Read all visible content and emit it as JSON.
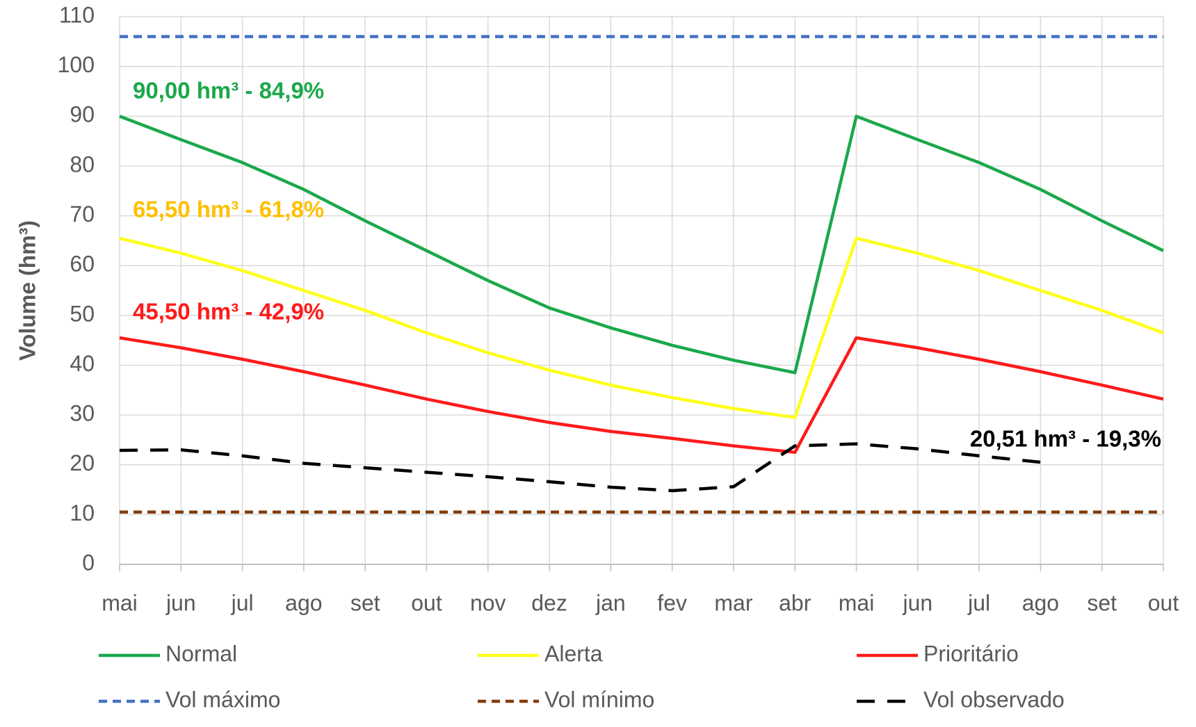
{
  "chart_data": {
    "type": "line",
    "y_label": "Volume (hm³)",
    "categories": [
      "mai",
      "jun",
      "jul",
      "ago",
      "set",
      "out",
      "nov",
      "dez",
      "jan",
      "fev",
      "mar",
      "abr",
      "mai",
      "jun",
      "jul",
      "ago",
      "set",
      "out"
    ],
    "ylim": [
      0,
      110
    ],
    "yticks": [
      0,
      10,
      20,
      30,
      40,
      50,
      60,
      70,
      80,
      90,
      100,
      110
    ],
    "grid": true,
    "series": [
      {
        "name": "Normal",
        "color": "#1ba84a",
        "dash": "solid",
        "values": [
          90,
          85.3,
          80.7,
          75.3,
          69,
          63,
          57,
          51.5,
          47.5,
          44,
          41,
          38.5,
          90,
          85.3,
          80.7,
          75.3,
          69,
          63
        ]
      },
      {
        "name": "Alerta",
        "color": "#ffff1a",
        "dash": "solid",
        "values": [
          65.5,
          62.5,
          59,
          55,
          51,
          46.5,
          42.5,
          39,
          36,
          33.5,
          31.3,
          29.5,
          65.5,
          62.5,
          59,
          55,
          51,
          46.5
        ]
      },
      {
        "name": "Prioritário",
        "color": "#ff1a1a",
        "dash": "solid",
        "values": [
          45.5,
          43.5,
          41.2,
          38.7,
          36,
          33.2,
          30.7,
          28.5,
          26.7,
          25.3,
          23.8,
          22.5,
          45.5,
          43.5,
          41.2,
          38.7,
          36,
          33.2
        ]
      },
      {
        "name": "Vol máximo",
        "color": "#4472c4",
        "dash": "dashed",
        "values": [
          106,
          106,
          106,
          106,
          106,
          106,
          106,
          106,
          106,
          106,
          106,
          106,
          106,
          106,
          106,
          106,
          106,
          106
        ]
      },
      {
        "name": "Vol mínimo",
        "color": "#843c0c",
        "dash": "dashed",
        "values": [
          10.5,
          10.5,
          10.5,
          10.5,
          10.5,
          10.5,
          10.5,
          10.5,
          10.5,
          10.5,
          10.5,
          10.5,
          10.5,
          10.5,
          10.5,
          10.5,
          10.5,
          10.5
        ]
      },
      {
        "name": "Vol observado",
        "color": "#000000",
        "dash": "long-dashed",
        "values": [
          22.9,
          23,
          21.8,
          20.3,
          19.4,
          18.5,
          17.6,
          16.6,
          15.5,
          14.8,
          15.6,
          23.8,
          24.2,
          23.2,
          21.8,
          20.51,
          null,
          null
        ]
      }
    ],
    "annotations": [
      {
        "text": "90,00 hm³ - 84,9%",
        "color": "#1ba84a"
      },
      {
        "text": "65,50 hm³ - 61,8%",
        "color": "#ffc000"
      },
      {
        "text": "45,50 hm³ - 42,9%",
        "color": "#ff1a1a"
      },
      {
        "text": "20,51 hm³ - 19,3%",
        "color": "#000000"
      }
    ]
  }
}
